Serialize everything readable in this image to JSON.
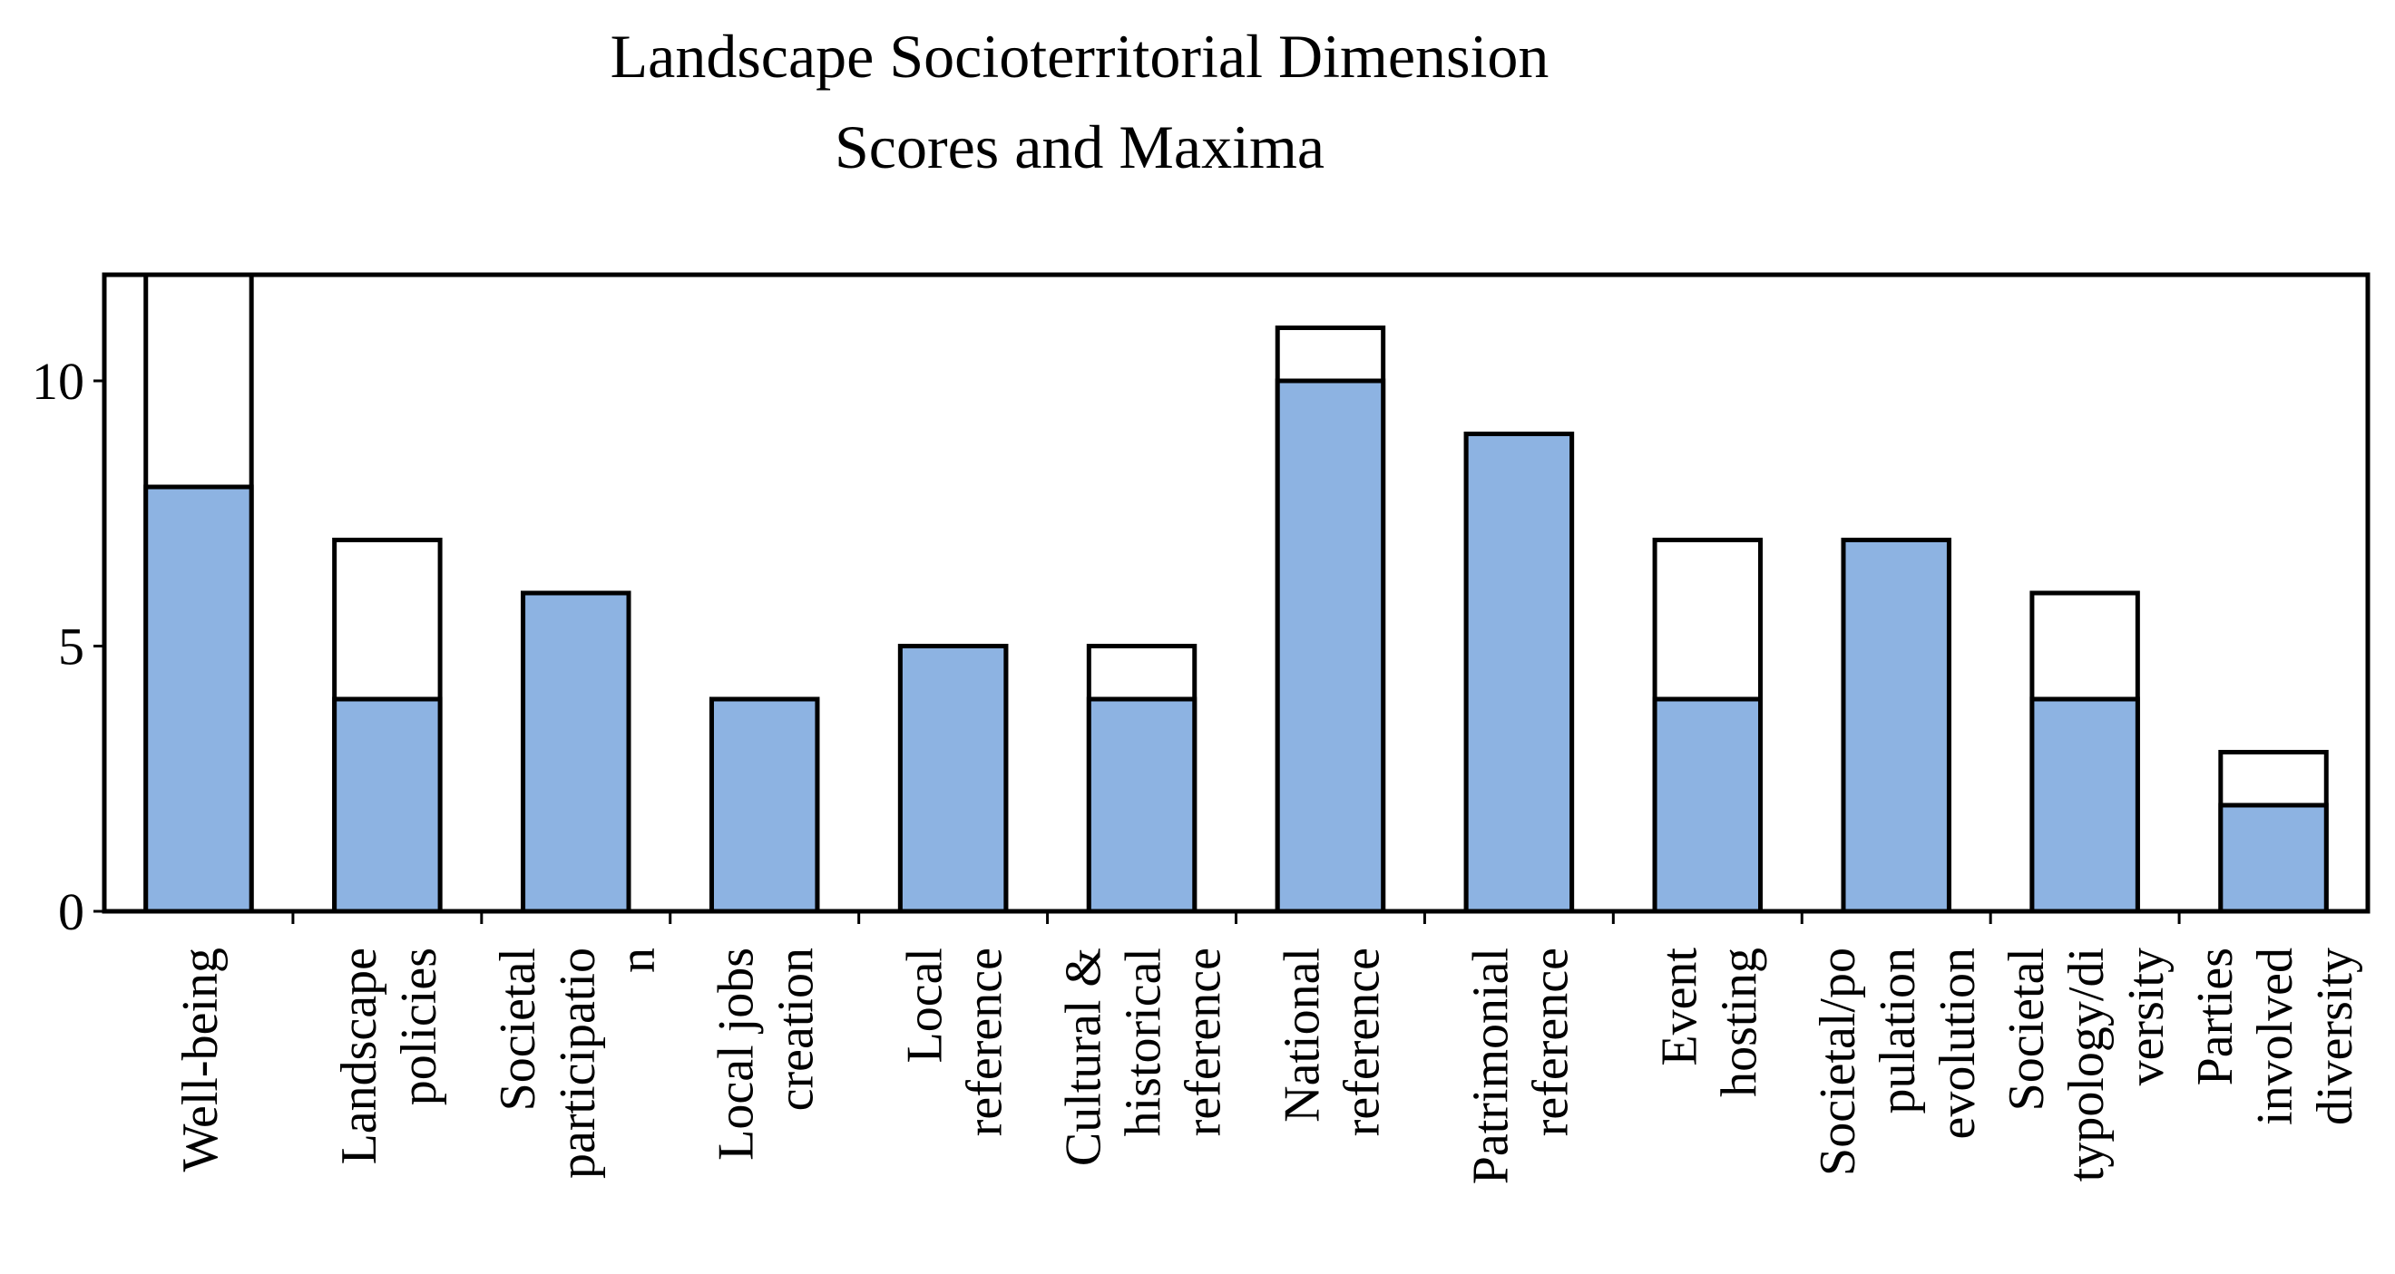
{
  "chart_data": {
    "type": "bar",
    "title": [
      "Landscape Socioterritorial Dimension",
      "Scores and Maxima"
    ],
    "categories": [
      [
        "Well-being"
      ],
      [
        "Landscape",
        "policies"
      ],
      [
        "Societal",
        "participatio",
        "n"
      ],
      [
        "Local jobs",
        "creation"
      ],
      [
        "Local",
        "reference"
      ],
      [
        "Cultural &",
        "historical",
        "reference"
      ],
      [
        "National",
        "reference"
      ],
      [
        "Patrimonial",
        "reference"
      ],
      [
        "Event",
        "hosting"
      ],
      [
        "Societal/po",
        "pulation",
        "evolution"
      ],
      [
        "Societal",
        "typology/di",
        "versity"
      ],
      [
        "Parties",
        "involved",
        "diversity"
      ]
    ],
    "series": [
      {
        "color": "#ffffff",
        "values": [
          12,
          7,
          6,
          4,
          5,
          5,
          11,
          9,
          7,
          7,
          6,
          3
        ]
      },
      {
        "color": "#8db3e2",
        "values": [
          8,
          4,
          6,
          4,
          5,
          4,
          10,
          9,
          4,
          7,
          4,
          2
        ]
      }
    ],
    "ylim": [
      0,
      12
    ],
    "yticks": [
      0,
      5,
      10
    ],
    "grid": false
  }
}
